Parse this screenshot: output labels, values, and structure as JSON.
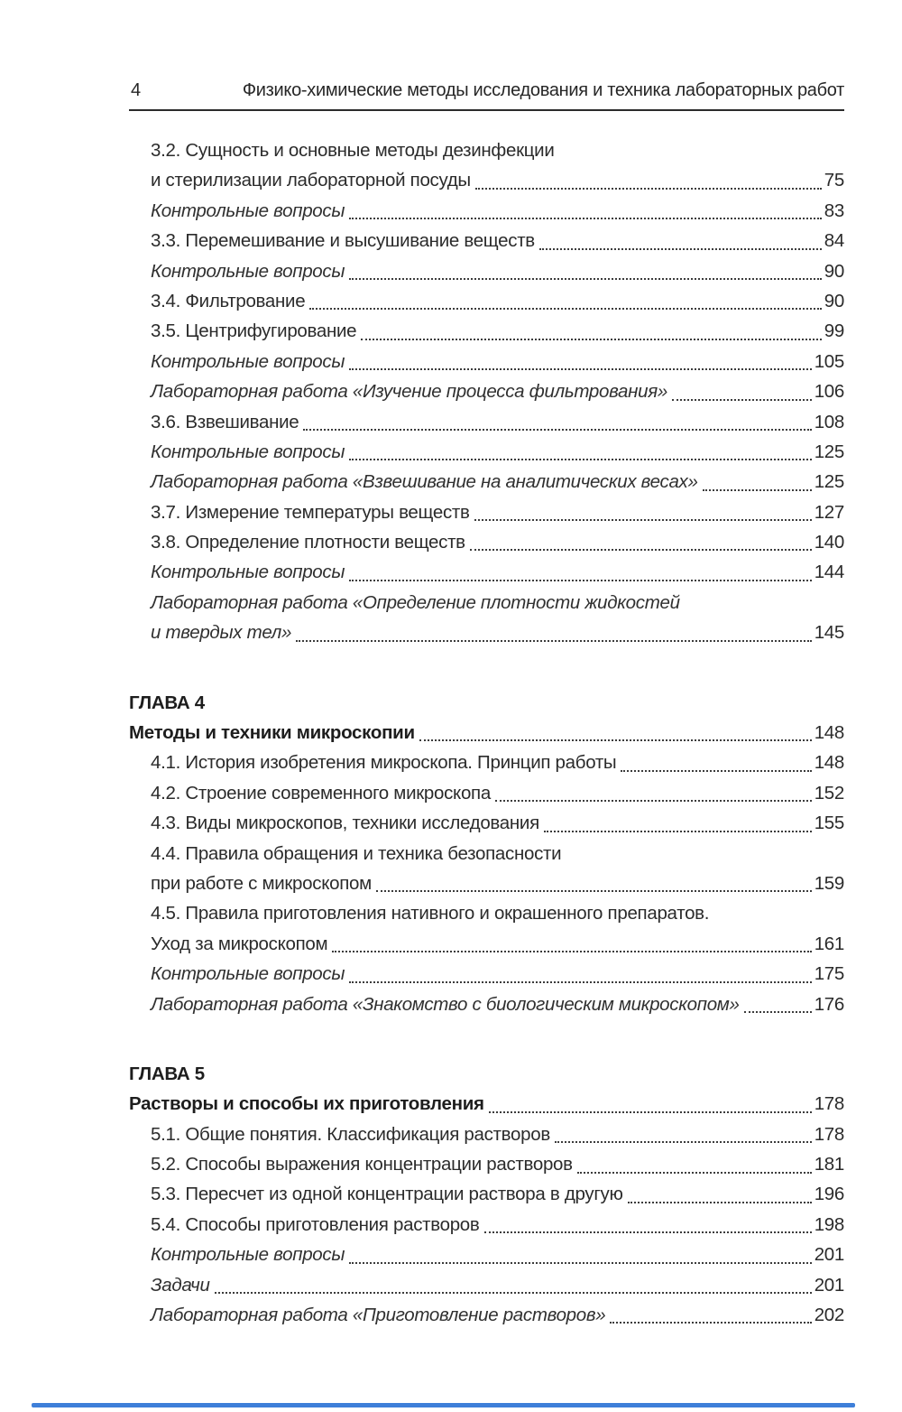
{
  "header": {
    "page_number": "4",
    "running_title": "Физико-химические методы исследования и техника лабораторных работ"
  },
  "colors": {
    "text": "#2b2b2b",
    "header_rule": "#2b2b2b",
    "accent_blue": "#3e7fd9",
    "background": "#ffffff"
  },
  "toc": {
    "rows": [
      {
        "text": "3.2. Сущность и основные методы дезинфекции",
        "style": "normal"
      },
      {
        "text": "и стерилизации лабораторной посуды",
        "page": "75",
        "style": "normal",
        "continuation": true
      },
      {
        "text": "Контрольные вопросы",
        "page": "83",
        "style": "italic"
      },
      {
        "text": "3.3. Перемешивание и высушивание веществ",
        "page": "84",
        "style": "normal"
      },
      {
        "text": "Контрольные вопросы",
        "page": "90",
        "style": "italic"
      },
      {
        "text": "3.4. Фильтрование",
        "page": "90",
        "style": "normal"
      },
      {
        "text": "3.5. Центрифугирование",
        "page": "99",
        "style": "normal"
      },
      {
        "text": "Контрольные вопросы",
        "page": "105",
        "style": "italic"
      },
      {
        "text": "Лабораторная работа «Изучение процесса фильтрования»",
        "page": "106",
        "style": "italic"
      },
      {
        "text": "3.6. Взвешивание",
        "page": "108",
        "style": "normal"
      },
      {
        "text": "Контрольные вопросы",
        "page": "125",
        "style": "italic"
      },
      {
        "text": "Лабораторная работа «Взвешивание на аналитических весах»",
        "page": "125",
        "style": "italic"
      },
      {
        "text": "3.7. Измерение температуры веществ",
        "page": "127",
        "style": "normal"
      },
      {
        "text": "3.8. Определение плотности веществ",
        "page": "140",
        "style": "normal"
      },
      {
        "text": "Контрольные вопросы",
        "page": "144",
        "style": "italic"
      },
      {
        "text": "Лабораторная работа «Определение плотности жидкостей",
        "style": "italic"
      },
      {
        "text": "и твердых тел»",
        "page": "145",
        "style": "italic",
        "continuation": true
      },
      {
        "text": "ГЛАВА 4",
        "style": "chapter"
      },
      {
        "text": "Методы и техники микроскопии",
        "page": "148",
        "style": "bold"
      },
      {
        "text": "4.1. История изобретения микроскопа. Принцип работы",
        "page": "148",
        "style": "normal"
      },
      {
        "text": "4.2. Строение современного микроскопа",
        "page": "152",
        "style": "normal"
      },
      {
        "text": "4.3. Виды микроскопов, техники исследования",
        "page": "155",
        "style": "normal"
      },
      {
        "text": "4.4. Правила обращения и техника безопасности",
        "style": "normal"
      },
      {
        "text": "при работе с микроскопом",
        "page": "159",
        "style": "normal",
        "continuation": true
      },
      {
        "text": "4.5. Правила приготовления нативного и окрашенного препаратов.",
        "style": "normal"
      },
      {
        "text": "Уход за микроскопом",
        "page": "161",
        "style": "normal",
        "continuation": true
      },
      {
        "text": "Контрольные вопросы",
        "page": "175",
        "style": "italic"
      },
      {
        "text": "Лабораторная работа «Знакомство с биологическим микроскопом»",
        "page": "176",
        "style": "italic"
      },
      {
        "text": "ГЛАВА 5",
        "style": "chapter"
      },
      {
        "text": "Растворы и способы их приготовления",
        "page": "178",
        "style": "bold"
      },
      {
        "text": "5.1. Общие понятия. Классификация растворов",
        "page": "178",
        "style": "normal"
      },
      {
        "text": "5.2. Способы выражения концентрации растворов",
        "page": "181",
        "style": "normal"
      },
      {
        "text": "5.3. Пересчет из одной концентрации раствора в другую",
        "page": "196",
        "style": "normal"
      },
      {
        "text": "5.4. Способы приготовления растворов",
        "page": "198",
        "style": "normal"
      },
      {
        "text": "Контрольные вопросы",
        "page": "201",
        "style": "italic"
      },
      {
        "text": "Задачи",
        "page": "201",
        "style": "italic"
      },
      {
        "text": "Лабораторная работа «Приготовление растворов»",
        "page": "202",
        "style": "italic"
      }
    ]
  }
}
